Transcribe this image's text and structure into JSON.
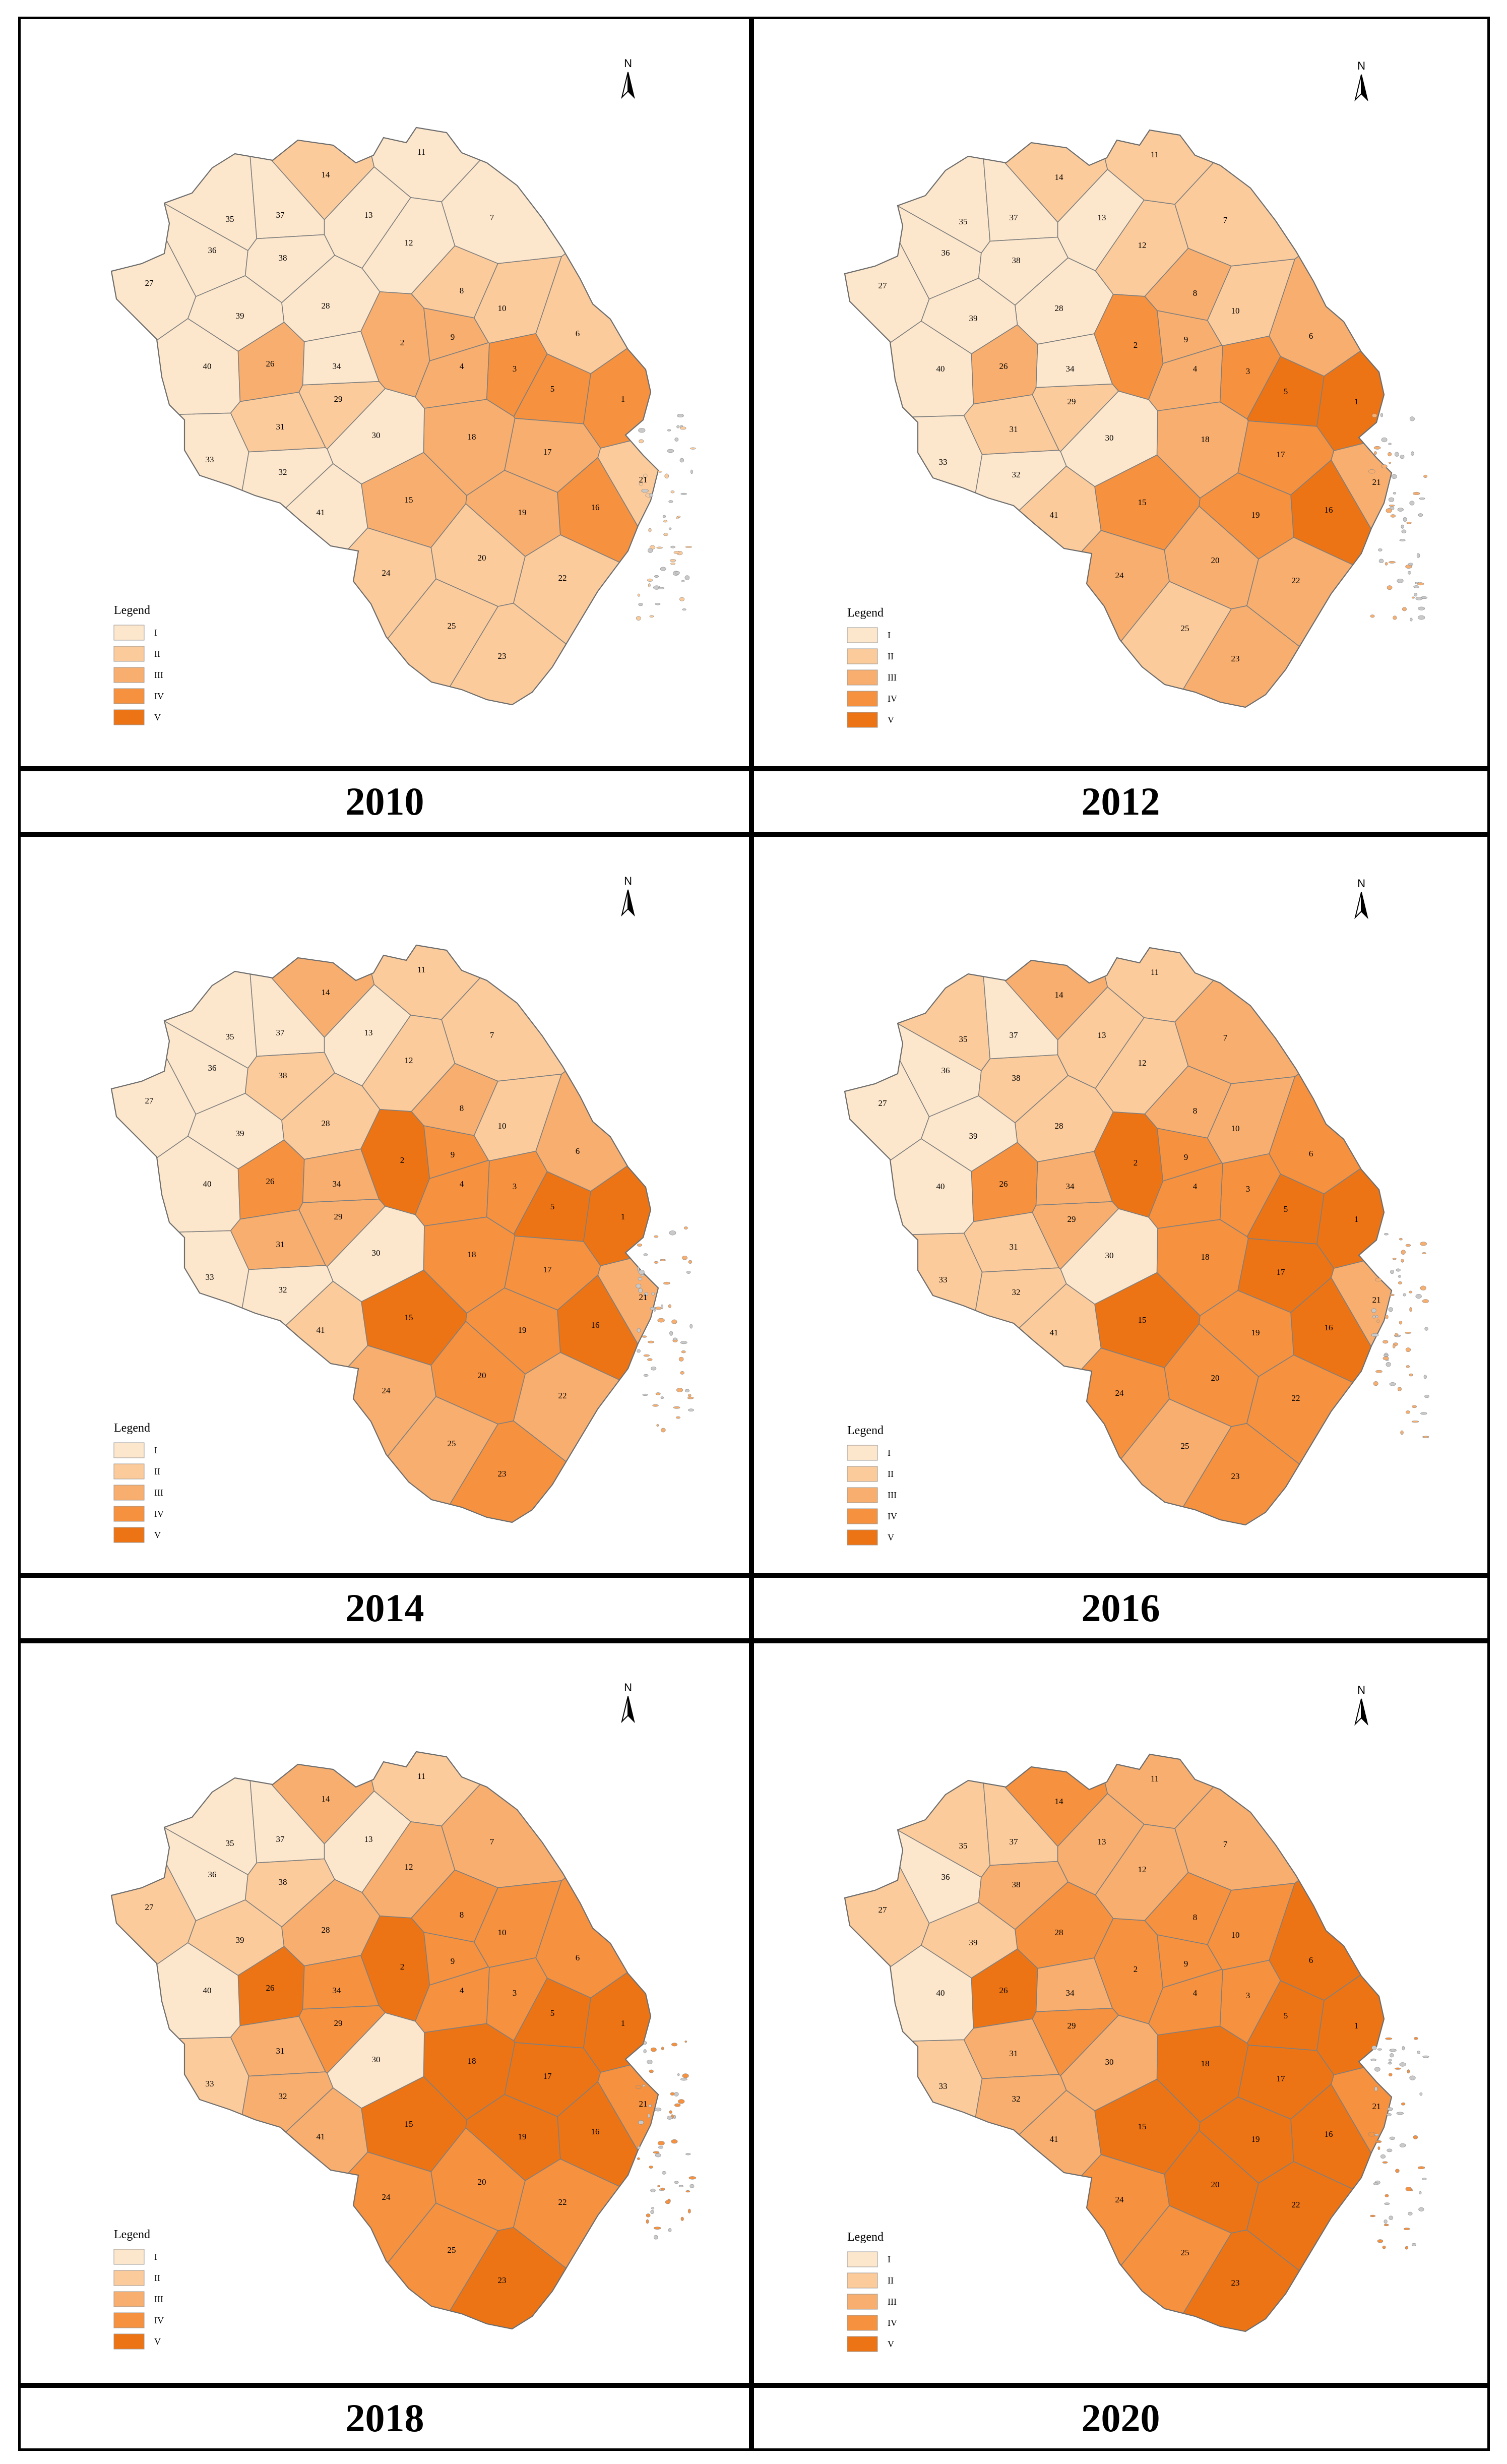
{
  "colors": {
    "I": "#fde7cc",
    "II": "#fccb9b",
    "III": "#f8ae6e",
    "IV": "#f5913f",
    "V": "#ec7415",
    "border": "#7f7f7f",
    "sea_dots": "#c9c9c9"
  },
  "legend": {
    "title": "Legend",
    "classes": [
      "I",
      "II",
      "III",
      "IV",
      "V"
    ]
  },
  "north_arrow_label": "N",
  "panels": [
    {
      "year": "2010",
      "classes": {
        "1": "IV",
        "2": "III",
        "3": "IV",
        "4": "III",
        "5": "IV",
        "6": "II",
        "7": "I",
        "8": "II",
        "9": "III",
        "10": "II",
        "11": "I",
        "12": "I",
        "13": "I",
        "14": "II",
        "15": "III",
        "16": "IV",
        "17": "III",
        "18": "III",
        "19": "III",
        "20": "II",
        "21": "II",
        "22": "II",
        "23": "II",
        "24": "II",
        "25": "II",
        "26": "III",
        "27": "I",
        "28": "I",
        "29": "II",
        "30": "I",
        "31": "II",
        "32": "I",
        "33": "I",
        "34": "I",
        "35": "I",
        "36": "I",
        "37": "I",
        "38": "I",
        "39": "I",
        "40": "I",
        "41": "I"
      }
    },
    {
      "year": "2012",
      "classes": {
        "1": "V",
        "2": "IV",
        "3": "IV",
        "4": "III",
        "5": "V",
        "6": "III",
        "7": "II",
        "8": "III",
        "9": "III",
        "10": "II",
        "11": "II",
        "12": "II",
        "13": "I",
        "14": "II",
        "15": "IV",
        "16": "V",
        "17": "IV",
        "18": "III",
        "19": "IV",
        "20": "III",
        "21": "III",
        "22": "III",
        "23": "III",
        "24": "III",
        "25": "II",
        "26": "III",
        "27": "I",
        "28": "I",
        "29": "II",
        "30": "I",
        "31": "II",
        "32": "I",
        "33": "I",
        "34": "I",
        "35": "I",
        "36": "I",
        "37": "I",
        "38": "I",
        "39": "I",
        "40": "I",
        "41": "II"
      }
    },
    {
      "year": "2014",
      "classes": {
        "1": "V",
        "2": "V",
        "3": "IV",
        "4": "IV",
        "5": "V",
        "6": "III",
        "7": "II",
        "8": "III",
        "9": "IV",
        "10": "II",
        "11": "II",
        "12": "II",
        "13": "I",
        "14": "III",
        "15": "V",
        "16": "V",
        "17": "IV",
        "18": "IV",
        "19": "IV",
        "20": "IV",
        "21": "III",
        "22": "III",
        "23": "IV",
        "24": "III",
        "25": "III",
        "26": "IV",
        "27": "I",
        "28": "II",
        "29": "III",
        "30": "I",
        "31": "III",
        "32": "I",
        "33": "I",
        "34": "III",
        "35": "I",
        "36": "I",
        "37": "I",
        "38": "II",
        "39": "I",
        "40": "I",
        "41": "II"
      }
    },
    {
      "year": "2016",
      "classes": {
        "1": "V",
        "2": "V",
        "3": "IV",
        "4": "IV",
        "5": "V",
        "6": "IV",
        "7": "III",
        "8": "III",
        "9": "IV",
        "10": "III",
        "11": "II",
        "12": "II",
        "13": "II",
        "14": "III",
        "15": "V",
        "16": "V",
        "17": "V",
        "18": "IV",
        "19": "IV",
        "20": "IV",
        "21": "III",
        "22": "IV",
        "23": "IV",
        "24": "IV",
        "25": "III",
        "26": "IV",
        "27": "I",
        "28": "II",
        "29": "III",
        "30": "I",
        "31": "II",
        "32": "II",
        "33": "II",
        "34": "III",
        "35": "II",
        "36": "I",
        "37": "I",
        "38": "II",
        "39": "I",
        "40": "I",
        "41": "II"
      }
    },
    {
      "year": "2018",
      "classes": {
        "1": "V",
        "2": "V",
        "3": "IV",
        "4": "IV",
        "5": "V",
        "6": "IV",
        "7": "III",
        "8": "IV",
        "9": "IV",
        "10": "IV",
        "11": "II",
        "12": "III",
        "13": "I",
        "14": "III",
        "15": "V",
        "16": "V",
        "17": "V",
        "18": "V",
        "19": "V",
        "20": "IV",
        "21": "IV",
        "22": "IV",
        "23": "V",
        "24": "IV",
        "25": "IV",
        "26": "V",
        "27": "II",
        "28": "III",
        "29": "IV",
        "30": "I",
        "31": "III",
        "32": "III",
        "33": "II",
        "34": "IV",
        "35": "I",
        "36": "I",
        "37": "I",
        "38": "II",
        "39": "II",
        "40": "I",
        "41": "III"
      }
    },
    {
      "year": "2020",
      "classes": {
        "1": "V",
        "2": "IV",
        "3": "IV",
        "4": "IV",
        "5": "V",
        "6": "V",
        "7": "III",
        "8": "IV",
        "9": "IV",
        "10": "IV",
        "11": "III",
        "12": "III",
        "13": "III",
        "14": "IV",
        "15": "V",
        "16": "V",
        "17": "V",
        "18": "V",
        "19": "V",
        "20": "V",
        "21": "IV",
        "22": "V",
        "23": "V",
        "24": "IV",
        "25": "IV",
        "26": "V",
        "27": "II",
        "28": "IV",
        "29": "IV",
        "30": "III",
        "31": "III",
        "32": "III",
        "33": "II",
        "34": "III",
        "35": "II",
        "36": "I",
        "37": "II",
        "38": "III",
        "39": "II",
        "40": "I",
        "41": "III"
      }
    }
  ]
}
